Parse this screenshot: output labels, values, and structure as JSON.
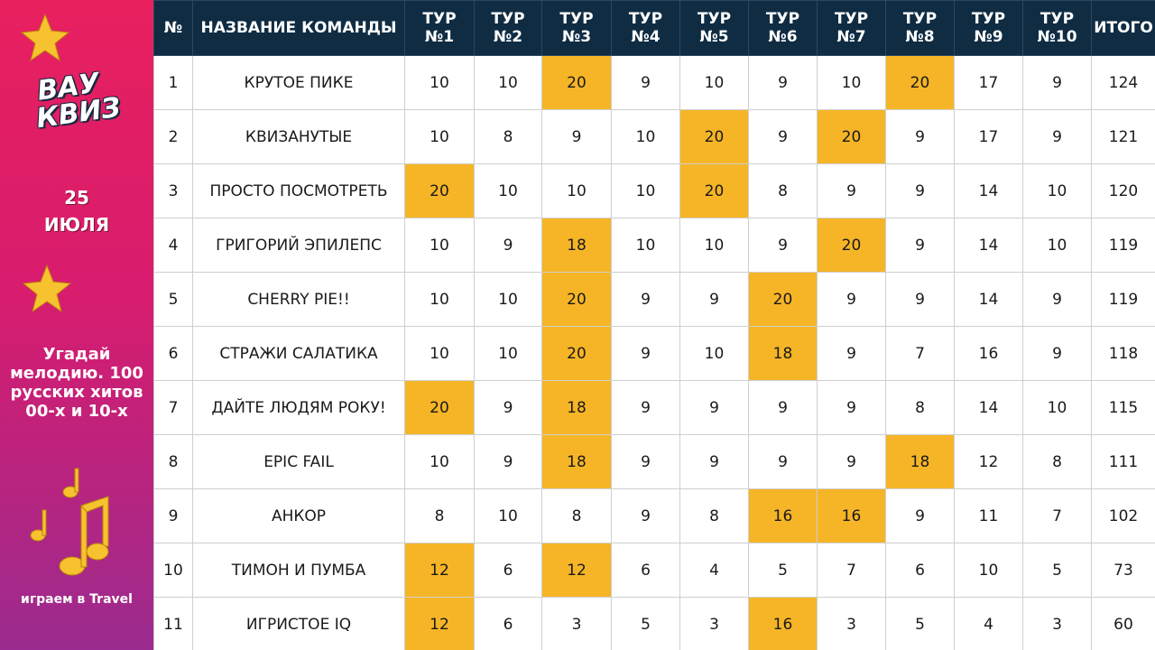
{
  "sidebar": {
    "logo_top": "ВАУ",
    "logo_bottom": "КВИЗ",
    "date": "25\nИЮЛЯ",
    "description": "Угадай мелодию. 100 русских хитов 00-х и 10-х",
    "venue": "играем в Travel"
  },
  "table": {
    "highlight_color": "#f6b526",
    "headers": [
      "№",
      "НАЗВАНИЕ КОМАНДЫ",
      "ТУР\n№1",
      "ТУР\n№2",
      "ТУР\n№3",
      "ТУР\n№4",
      "ТУР\n№5",
      "ТУР\n№6",
      "ТУР\n№7",
      "ТУР\n№8",
      "ТУР\n№9",
      "ТУР\n№10",
      "ИТОГО"
    ],
    "rows": [
      {
        "number": 1,
        "team": "КРУТОЕ ПИКЕ",
        "scores": [
          10,
          10,
          20,
          9,
          10,
          9,
          10,
          20,
          17,
          9
        ],
        "highlighted": [
          false,
          false,
          true,
          false,
          false,
          false,
          false,
          true,
          false,
          false
        ],
        "total": 124
      },
      {
        "number": 2,
        "team": "КВИЗАНУТЫЕ",
        "scores": [
          10,
          8,
          9,
          10,
          20,
          9,
          20,
          9,
          17,
          9
        ],
        "highlighted": [
          false,
          false,
          false,
          false,
          true,
          false,
          true,
          false,
          false,
          false
        ],
        "total": 121
      },
      {
        "number": 3,
        "team": "ПРОСТО ПОСМОТРЕТЬ",
        "scores": [
          20,
          10,
          10,
          10,
          20,
          8,
          9,
          9,
          14,
          10
        ],
        "highlighted": [
          true,
          false,
          false,
          false,
          true,
          false,
          false,
          false,
          false,
          false
        ],
        "total": 120
      },
      {
        "number": 4,
        "team": "ГРИГОРИЙ ЭПИЛЕПС",
        "scores": [
          10,
          9,
          18,
          10,
          10,
          9,
          20,
          9,
          14,
          10
        ],
        "highlighted": [
          false,
          false,
          true,
          false,
          false,
          false,
          true,
          false,
          false,
          false
        ],
        "total": 119
      },
      {
        "number": 5,
        "team": "CHERRY PIE!!",
        "scores": [
          10,
          10,
          20,
          9,
          9,
          20,
          9,
          9,
          14,
          9
        ],
        "highlighted": [
          false,
          false,
          true,
          false,
          false,
          true,
          false,
          false,
          false,
          false
        ],
        "total": 119
      },
      {
        "number": 6,
        "team": "СТРАЖИ САЛАТИКА",
        "scores": [
          10,
          10,
          20,
          9,
          10,
          18,
          9,
          7,
          16,
          9
        ],
        "highlighted": [
          false,
          false,
          true,
          false,
          false,
          true,
          false,
          false,
          false,
          false
        ],
        "total": 118
      },
      {
        "number": 7,
        "team": "ДАЙТЕ ЛЮДЯМ РОКУ!",
        "scores": [
          20,
          9,
          18,
          9,
          9,
          9,
          9,
          8,
          14,
          10
        ],
        "highlighted": [
          true,
          false,
          true,
          false,
          false,
          false,
          false,
          false,
          false,
          false
        ],
        "total": 115
      },
      {
        "number": 8,
        "team": "EPIC FAIL",
        "scores": [
          10,
          9,
          18,
          9,
          9,
          9,
          9,
          18,
          12,
          8
        ],
        "highlighted": [
          false,
          false,
          true,
          false,
          false,
          false,
          false,
          true,
          false,
          false
        ],
        "total": 111
      },
      {
        "number": 9,
        "team": "АНКОР",
        "scores": [
          8,
          10,
          8,
          9,
          8,
          16,
          16,
          9,
          11,
          7
        ],
        "highlighted": [
          false,
          false,
          false,
          false,
          false,
          true,
          true,
          false,
          false,
          false
        ],
        "total": 102
      },
      {
        "number": 10,
        "team": "ТИМОН И ПУМБА",
        "scores": [
          12,
          6,
          12,
          6,
          4,
          5,
          7,
          6,
          10,
          5
        ],
        "highlighted": [
          true,
          false,
          true,
          false,
          false,
          false,
          false,
          false,
          false,
          false
        ],
        "total": 73
      },
      {
        "number": 11,
        "team": "ИГРИСТОЕ IQ",
        "scores": [
          12,
          6,
          3,
          5,
          3,
          16,
          3,
          5,
          4,
          3
        ],
        "highlighted": [
          true,
          false,
          false,
          false,
          false,
          true,
          false,
          false,
          false,
          false
        ],
        "total": 60
      }
    ]
  }
}
